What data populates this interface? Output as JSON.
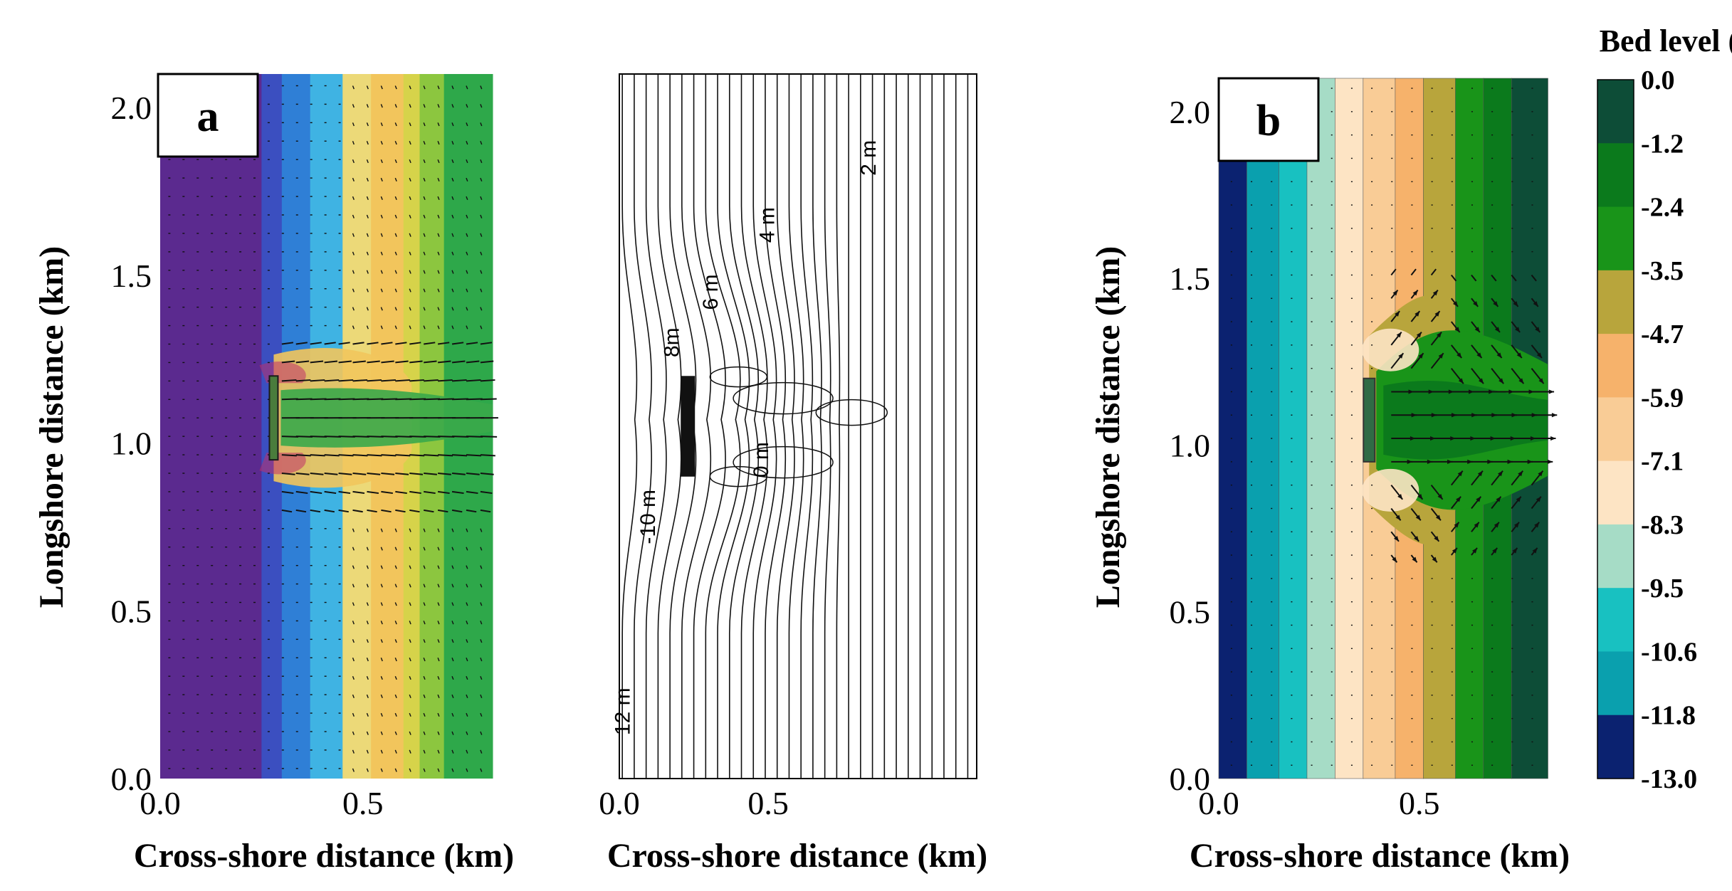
{
  "chart_data": [
    {
      "type": "heatmap",
      "panel": "a",
      "title": "",
      "xlabel": "Cross-shore distance (km)",
      "ylabel": "Longshore distance (km)",
      "xlim": [
        0.0,
        0.82
      ],
      "ylim": [
        0.0,
        2.1
      ],
      "x_ticks": [
        "0.0",
        "0.5"
      ],
      "y_ticks": [
        "0.0",
        "0.5",
        "1.0",
        "1.5",
        "2.0"
      ],
      "x_tick_values": [
        0.0,
        0.5
      ],
      "y_tick_values": [
        0.0,
        0.5,
        1.0,
        1.5,
        2.0
      ],
      "structure": {
        "x": 0.28,
        "y_min": 0.95,
        "y_max": 1.2
      },
      "bands": [
        {
          "x0": 0.0,
          "x1": 0.25,
          "color": "#5b2a8f"
        },
        {
          "x0": 0.25,
          "x1": 0.3,
          "color": "#3b4fc0"
        },
        {
          "x0": 0.3,
          "x1": 0.37,
          "color": "#2f7fd6"
        },
        {
          "x0": 0.37,
          "x1": 0.45,
          "color": "#3fb3e3"
        },
        {
          "x0": 0.45,
          "x1": 0.52,
          "color": "#ecd978"
        },
        {
          "x0": 0.52,
          "x1": 0.6,
          "color": "#f2c55c"
        },
        {
          "x0": 0.6,
          "x1": 0.64,
          "color": "#d6d34a"
        },
        {
          "x0": 0.64,
          "x1": 0.7,
          "color": "#8cc63f"
        },
        {
          "x0": 0.7,
          "x1": 0.82,
          "color": "#2ea84a"
        }
      ],
      "label": "a"
    },
    {
      "type": "line",
      "panel": "contour",
      "title": "",
      "xlabel": "Cross-shore distance (km)",
      "ylabel": "",
      "xlim": [
        0.0,
        1.2
      ],
      "ylim": [
        0.0,
        2.1
      ],
      "x_ticks": [
        "0.0",
        "0.5"
      ],
      "x_tick_values": [
        0.0,
        0.5
      ],
      "contour_labels": [
        "12 m",
        "-10 m",
        "8m",
        "6 m",
        "4 m",
        "2 m",
        "0 m"
      ],
      "structure": {
        "x": 0.23,
        "y_min": 0.9,
        "y_max": 1.2
      }
    },
    {
      "type": "heatmap",
      "panel": "b",
      "title": "",
      "xlabel": "Cross-shore distance (km)",
      "ylabel": "Longshore distance (km)",
      "xlim": [
        0.0,
        0.82
      ],
      "ylim": [
        0.0,
        2.1
      ],
      "x_ticks": [
        "0.0",
        "0.5"
      ],
      "y_ticks": [
        "0.0",
        "0.5",
        "1.0",
        "1.5",
        "2.0"
      ],
      "x_tick_values": [
        0.0,
        0.5
      ],
      "y_tick_values": [
        0.0,
        0.5,
        1.0,
        1.5,
        2.0
      ],
      "structure": {
        "x": 0.375,
        "y_min": 0.95,
        "y_max": 1.2
      },
      "label": "b",
      "colorbar": {
        "title": "Bed level (m)",
        "levels": [
          "0.0",
          "-1.2",
          "-2.4",
          "-3.5",
          "-4.7",
          "-5.9",
          "-7.1",
          "-8.3",
          "-9.5",
          "-10.6",
          "-11.8",
          "-13.0"
        ],
        "colors": [
          "#0d4d37",
          "#0b7a1c",
          "#199419",
          "#b8a53c",
          "#f6b26b",
          "#f9cc96",
          "#fde4c4",
          "#a6dcc6",
          "#18c1c1",
          "#0aa0ae",
          "#0b2270"
        ]
      },
      "bands": [
        {
          "x0": 0.0,
          "x1": 0.07,
          "level_index": 10
        },
        {
          "x0": 0.07,
          "x1": 0.15,
          "level_index": 9
        },
        {
          "x0": 0.15,
          "x1": 0.22,
          "level_index": 8
        },
        {
          "x0": 0.22,
          "x1": 0.29,
          "level_index": 7
        },
        {
          "x0": 0.29,
          "x1": 0.36,
          "level_index": 6
        },
        {
          "x0": 0.36,
          "x1": 0.44,
          "level_index": 5
        },
        {
          "x0": 0.44,
          "x1": 0.51,
          "level_index": 4
        },
        {
          "x0": 0.51,
          "x1": 0.59,
          "level_index": 3
        },
        {
          "x0": 0.59,
          "x1": 0.66,
          "level_index": 2
        },
        {
          "x0": 0.66,
          "x1": 0.73,
          "level_index": 1
        },
        {
          "x0": 0.73,
          "x1": 0.82,
          "level_index": 0
        }
      ]
    }
  ]
}
